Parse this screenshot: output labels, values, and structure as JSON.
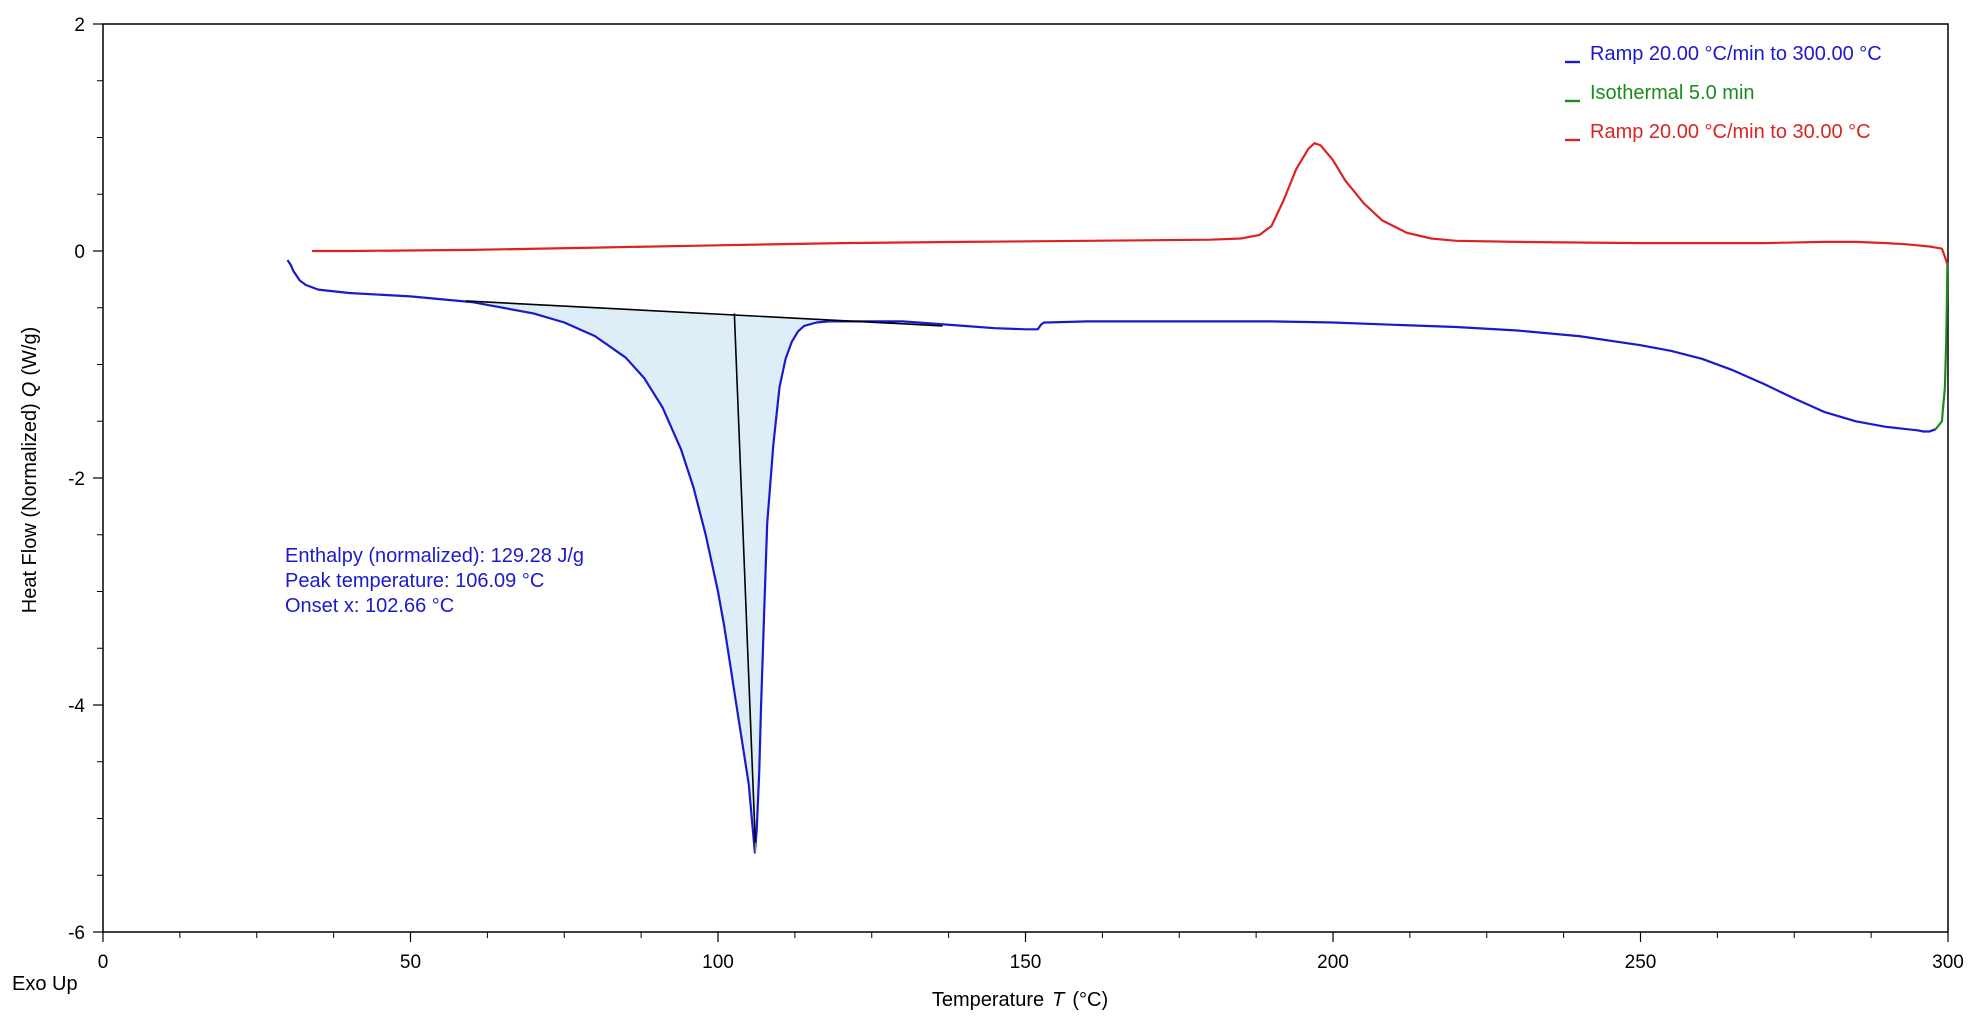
{
  "chart_data": {
    "type": "line",
    "title": "",
    "xlabel": "Temperature",
    "xlabel_symbol": "T",
    "xlabel_unit": "(°C)",
    "ylabel": "Heat Flow (Normalized)",
    "ylabel_symbol": "Q",
    "ylabel_unit": "(W/g)",
    "corner_label": "Exo Up",
    "xlim": [
      0,
      300
    ],
    "ylim": [
      -6,
      2
    ],
    "xticks": [
      0,
      50,
      100,
      150,
      200,
      250,
      300
    ],
    "yticks": [
      -6,
      -4,
      -2,
      0,
      2
    ],
    "grid": false,
    "legend_position": "top-right",
    "series": [
      {
        "name": "Ramp 20.00 °C/min to 300.00 °C",
        "color": "#1a1acc",
        "x": [
          30,
          30.5,
          31,
          32,
          33,
          35,
          40,
          50,
          60,
          70,
          75,
          80,
          85,
          88,
          91,
          94,
          96,
          98,
          100,
          101,
          102,
          103,
          104,
          105,
          105.5,
          106,
          106.3,
          106.7,
          107,
          107.5,
          108,
          109,
          110,
          111,
          112,
          113,
          114,
          116,
          118,
          120,
          125,
          130,
          135,
          140,
          145,
          150,
          152,
          152.5,
          153,
          153.5,
          160,
          170,
          180,
          190,
          200,
          210,
          220,
          230,
          240,
          250,
          255,
          260,
          265,
          270,
          275,
          280,
          285,
          290,
          295,
          296,
          297,
          297.5,
          298
        ],
        "y": [
          -0.08,
          -0.12,
          -0.18,
          -0.26,
          -0.3,
          -0.34,
          -0.37,
          -0.4,
          -0.45,
          -0.55,
          -0.63,
          -0.75,
          -0.94,
          -1.12,
          -1.38,
          -1.75,
          -2.08,
          -2.5,
          -3.0,
          -3.3,
          -3.65,
          -4.0,
          -4.35,
          -4.7,
          -5.0,
          -5.3,
          -5.1,
          -4.6,
          -4.0,
          -3.2,
          -2.4,
          -1.7,
          -1.2,
          -0.95,
          -0.8,
          -0.71,
          -0.66,
          -0.63,
          -0.62,
          -0.62,
          -0.62,
          -0.62,
          -0.64,
          -0.66,
          -0.68,
          -0.69,
          -0.69,
          -0.65,
          -0.63,
          -0.63,
          -0.62,
          -0.62,
          -0.62,
          -0.62,
          -0.63,
          -0.65,
          -0.67,
          -0.7,
          -0.75,
          -0.83,
          -0.88,
          -0.95,
          -1.05,
          -1.17,
          -1.3,
          -1.42,
          -1.5,
          -1.55,
          -1.58,
          -1.59,
          -1.59,
          -1.58,
          -1.57
        ]
      },
      {
        "name": "Isothermal 5.0 min",
        "color": "#1a8c1a",
        "x": [
          298,
          299,
          299.5,
          299.7,
          299.8,
          299.85,
          299.9
        ],
        "y": [
          -1.57,
          -1.5,
          -1.2,
          -0.8,
          -0.5,
          -0.3,
          -0.1
        ]
      },
      {
        "name": "Ramp 20.00 °C/min to 30.00 °C",
        "color": "#dd2222",
        "x": [
          34,
          40,
          60,
          80,
          100,
          120,
          140,
          160,
          180,
          185,
          188,
          190,
          192,
          194,
          196,
          197,
          198,
          200,
          202,
          205,
          208,
          212,
          216,
          220,
          230,
          250,
          270,
          280,
          285,
          290,
          293,
          295,
          297,
          298,
          299,
          299.5,
          299.9
        ],
        "y": [
          0.0,
          0.0,
          0.01,
          0.03,
          0.05,
          0.07,
          0.08,
          0.09,
          0.1,
          0.11,
          0.14,
          0.22,
          0.45,
          0.72,
          0.9,
          0.95,
          0.93,
          0.8,
          0.62,
          0.42,
          0.27,
          0.16,
          0.11,
          0.09,
          0.08,
          0.07,
          0.07,
          0.08,
          0.08,
          0.07,
          0.06,
          0.05,
          0.04,
          0.03,
          0.02,
          -0.05,
          -0.12
        ]
      }
    ],
    "analysis": {
      "baseline": {
        "x": [
          59,
          136.5
        ],
        "y": [
          -0.44,
          -0.66
        ]
      },
      "onset_line": {
        "x": [
          102.66,
          106.09
        ],
        "y": [
          -0.55,
          -5.25
        ]
      },
      "peak_marker": {
        "x": 106.09,
        "y": -5.3
      },
      "fill_color": "#ddeef9",
      "integration_x_range": [
        59,
        136.5
      ],
      "text_color": "#1a1acc",
      "lines": [
        "Enthalpy (normalized): 129.28 J/g",
        "Peak temperature: 106.09 °C",
        "Onset x: 102.66 °C"
      ]
    }
  }
}
